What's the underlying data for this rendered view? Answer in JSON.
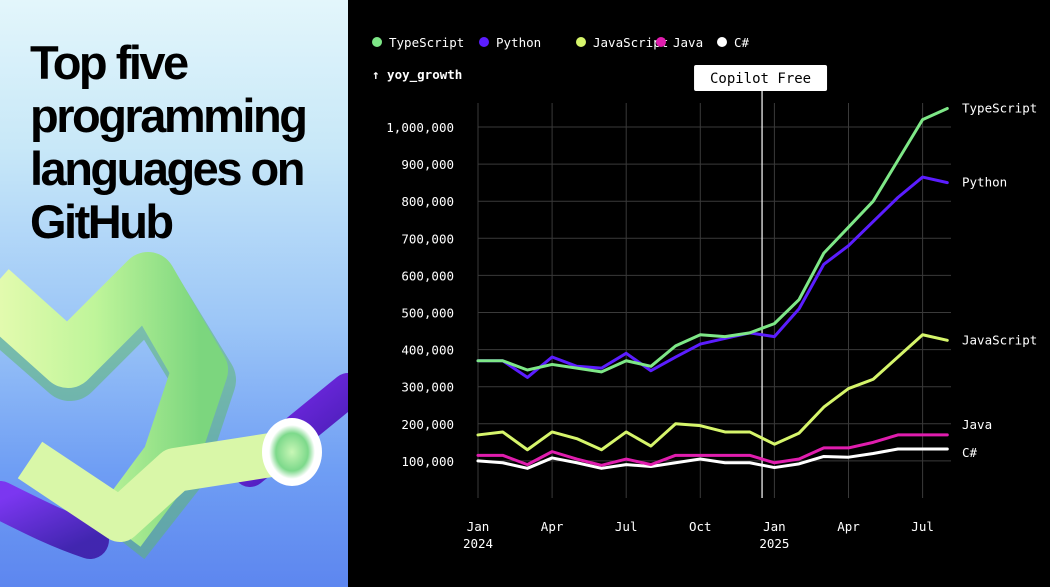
{
  "headline": "Top five programming languages on GitHub",
  "chart_data": {
    "type": "line",
    "ylabel": "yoy_growth",
    "ylabel_arrow": "↑",
    "ylim": [
      0,
      1050000
    ],
    "y_ticks": [
      100000,
      200000,
      300000,
      400000,
      500000,
      600000,
      700000,
      800000,
      900000,
      1000000
    ],
    "y_tick_labels": [
      "100,000",
      "200,000",
      "300,000",
      "400,000",
      "500,000",
      "600,000",
      "700,000",
      "800,000",
      "900,000",
      "1,000,000"
    ],
    "x_tick_labels": [
      {
        "month": 0,
        "line1": "Jan",
        "line2": "2024"
      },
      {
        "month": 3,
        "line1": "Apr",
        "line2": ""
      },
      {
        "month": 6,
        "line1": "Jul",
        "line2": ""
      },
      {
        "month": 9,
        "line1": "Oct",
        "line2": ""
      },
      {
        "month": 12,
        "line1": "Jan",
        "line2": "2025"
      },
      {
        "month": 15,
        "line1": "Apr",
        "line2": ""
      },
      {
        "month": 18,
        "line1": "Jul",
        "line2": ""
      }
    ],
    "x_months": [
      0,
      1,
      2,
      3,
      4,
      5,
      6,
      7,
      8,
      9,
      10,
      11,
      12,
      13,
      14,
      15,
      16,
      17,
      18,
      19
    ],
    "grid": true,
    "legend_position": "top",
    "annotation": {
      "label": "Copilot Free",
      "month": 11.5
    },
    "series": [
      {
        "name": "TypeScript",
        "color": "#7ee787",
        "values": [
          370000,
          370000,
          345000,
          360000,
          350000,
          340000,
          370000,
          355000,
          410000,
          440000,
          435000,
          445000,
          470000,
          535000,
          660000,
          730000,
          800000,
          910000,
          1020000,
          1050000
        ]
      },
      {
        "name": "Python",
        "color": "#5b1dff",
        "values": [
          370000,
          370000,
          325000,
          380000,
          355000,
          350000,
          390000,
          343000,
          380000,
          415000,
          430000,
          445000,
          435000,
          510000,
          630000,
          680000,
          745000,
          810000,
          865000,
          850000
        ]
      },
      {
        "name": "JavaScript",
        "color": "#d6f56b",
        "values": [
          170000,
          178000,
          130000,
          178000,
          160000,
          130000,
          178000,
          140000,
          200000,
          195000,
          178000,
          178000,
          145000,
          175000,
          245000,
          295000,
          320000,
          380000,
          440000,
          425000
        ]
      },
      {
        "name": "Java",
        "color": "#e01dae",
        "values": [
          115000,
          115000,
          90000,
          125000,
          105000,
          88000,
          105000,
          90000,
          115000,
          115000,
          115000,
          115000,
          95000,
          105000,
          135000,
          135000,
          150000,
          170000,
          170000,
          170000
        ]
      },
      {
        "name": "C#",
        "color": "#ffffff",
        "values": [
          100000,
          95000,
          80000,
          108000,
          95000,
          80000,
          90000,
          85000,
          95000,
          105000,
          95000,
          95000,
          82000,
          92000,
          112000,
          110000,
          120000,
          132000,
          132000,
          132000
        ]
      }
    ]
  }
}
